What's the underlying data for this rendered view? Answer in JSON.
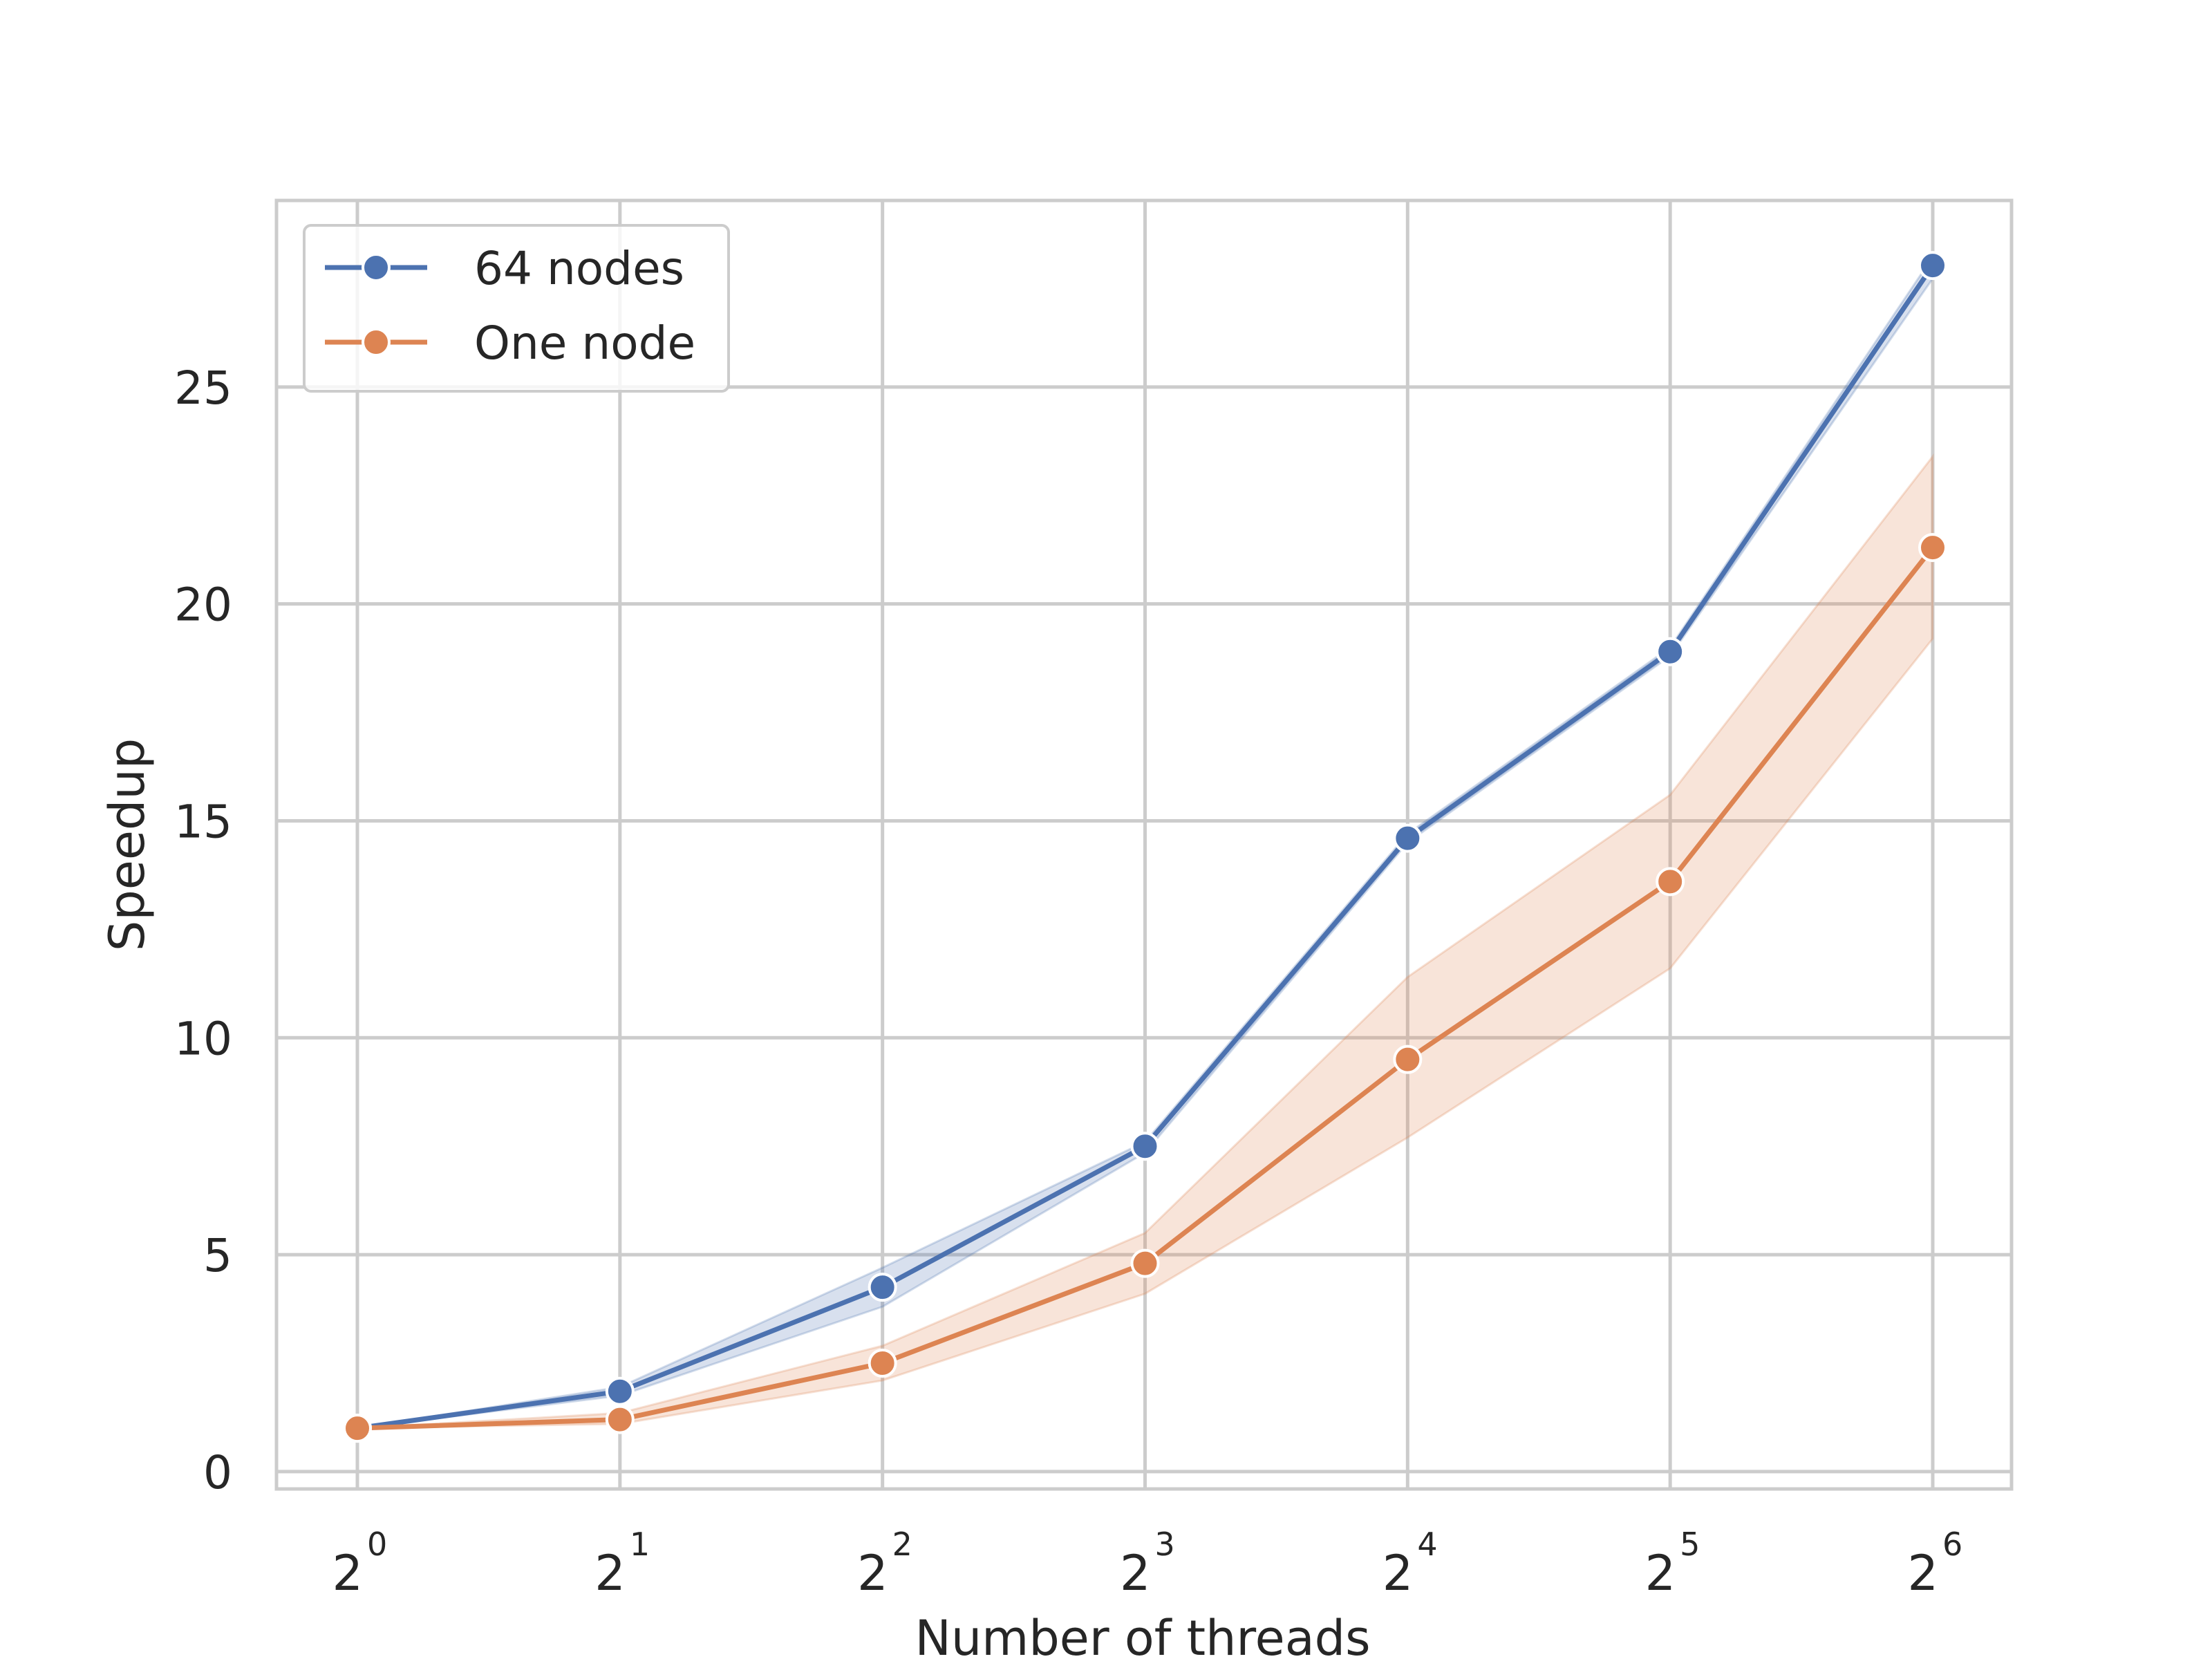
{
  "chart_data": {
    "type": "line",
    "title": "",
    "xlabel": "Number of threads",
    "ylabel": "Speedup",
    "x_scale": "log2",
    "x": [
      1,
      2,
      4,
      8,
      16,
      32,
      64
    ],
    "x_tick_labels": [
      {
        "base": "2",
        "exp": "0"
      },
      {
        "base": "2",
        "exp": "1"
      },
      {
        "base": "2",
        "exp": "2"
      },
      {
        "base": "2",
        "exp": "3"
      },
      {
        "base": "2",
        "exp": "4"
      },
      {
        "base": "2",
        "exp": "5"
      },
      {
        "base": "2",
        "exp": "6"
      }
    ],
    "y_ticks": [
      0,
      5,
      10,
      15,
      20,
      25
    ],
    "y_tick_labels": [
      "0",
      "5",
      "10",
      "15",
      "20",
      "25"
    ],
    "ylim": [
      -0.4,
      29.3
    ],
    "grid": true,
    "legend_position": "top-left",
    "series": [
      {
        "name": "64 nodes",
        "color": "#4c72b0",
        "values": [
          1.0,
          1.85,
          4.25,
          7.5,
          14.6,
          18.9,
          27.8
        ],
        "ci_lower": [
          1.0,
          1.75,
          3.8,
          7.35,
          14.5,
          18.8,
          27.5
        ],
        "ci_upper": [
          1.0,
          1.95,
          4.7,
          7.6,
          14.7,
          19.0,
          28.0
        ]
      },
      {
        "name": "One node",
        "color": "#dd8452",
        "values": [
          1.0,
          1.2,
          2.5,
          4.8,
          9.5,
          13.6,
          21.3
        ],
        "ci_lower": [
          1.0,
          1.1,
          2.1,
          4.1,
          7.7,
          11.6,
          19.2
        ],
        "ci_upper": [
          1.0,
          1.35,
          2.9,
          5.5,
          11.4,
          15.6,
          23.4
        ]
      }
    ]
  }
}
